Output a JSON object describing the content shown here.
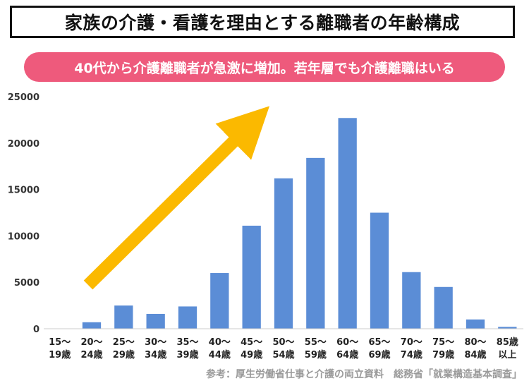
{
  "header": {
    "title": "家族の介護・看護を理由とする離職者の年齢構成",
    "subtitle": "40代から介護離職者が急激に増加。若年層でも介護離職はいる"
  },
  "footer": {
    "source": "参考：厚生労働省仕事と介護の両立資料　総務省「就業構造基本調査」"
  },
  "colors": {
    "bar": "#5b8dd6",
    "arrow": "#fbb900",
    "pill": "#ee5a7c"
  },
  "chart_data": {
    "type": "bar",
    "categories": [
      {
        "top": "15～",
        "bottom": "19歳"
      },
      {
        "top": "20～",
        "bottom": "24歳"
      },
      {
        "top": "25～",
        "bottom": "29歳"
      },
      {
        "top": "30～",
        "bottom": "34歳"
      },
      {
        "top": "35～",
        "bottom": "39歳"
      },
      {
        "top": "40～",
        "bottom": "44歳"
      },
      {
        "top": "45～",
        "bottom": "49歳"
      },
      {
        "top": "50～",
        "bottom": "54歳"
      },
      {
        "top": "55～",
        "bottom": "59歳"
      },
      {
        "top": "60～",
        "bottom": "64歳"
      },
      {
        "top": "65～",
        "bottom": "69歳"
      },
      {
        "top": "70～",
        "bottom": "74歳"
      },
      {
        "top": "75～",
        "bottom": "79歳"
      },
      {
        "top": "80～",
        "bottom": "84歳"
      },
      {
        "top": "85歳",
        "bottom": "以上"
      }
    ],
    "values": [
      0,
      700,
      2500,
      1600,
      2400,
      6000,
      11100,
      16200,
      18400,
      22700,
      12500,
      6100,
      4500,
      1000,
      200
    ],
    "ylim": [
      0,
      25000
    ],
    "yticks": [
      0,
      5000,
      10000,
      15000,
      20000,
      25000
    ],
    "grid": false,
    "legend": "none"
  }
}
